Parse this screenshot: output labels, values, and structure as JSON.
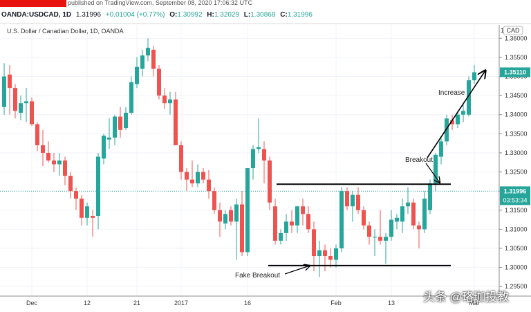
{
  "header": {
    "published": "published on TradingView.com, September 08, 2020 17:06:32 UTC",
    "symbol": "OANDA:USDCAD, 1D",
    "last": "1.31996",
    "change": "+0.01004 (+0.77%)",
    "o_label": "O:",
    "o_val": "1.30992",
    "h_label": "H:",
    "h_val": "1.32029",
    "l_label": "L:",
    "l_val": "1.30868",
    "c_label": "C:",
    "c_val": "1.31996"
  },
  "chart_title": "U.S. Dollar / Canadian Dollar, 1D, OANDA",
  "watermark": "头条 @珞珈投教",
  "colors": {
    "up": "#26a69a",
    "down": "#ef5350",
    "grid": "#f0f3fa",
    "price_tag": "#26a69a"
  },
  "chart_data": {
    "type": "candlestick",
    "ylim": [
      1.2925,
      1.3635
    ],
    "y_ticks": [
      1.295,
      1.3,
      1.305,
      1.31,
      1.315,
      1.32,
      1.325,
      1.33,
      1.335,
      1.34,
      1.345,
      1.35,
      1.355,
      1.36
    ],
    "y_tick_labels": [
      "1.29500",
      "1.30000",
      "1.30500",
      "1.31000",
      "1.31500",
      "1.32000",
      "1.32500",
      "1.33000",
      "1.33500",
      "1.34000",
      "1.34500",
      "1.35000",
      "1.35500",
      "1.36000"
    ],
    "currency_label": "CAD",
    "y_axis_top_label": "1",
    "x_labels": [
      {
        "label": "Dec",
        "index": 5
      },
      {
        "label": "12",
        "index": 15
      },
      {
        "label": "21",
        "index": 24
      },
      {
        "label": "2017",
        "index": 32
      },
      {
        "label": "16",
        "index": 44
      },
      {
        "label": "Feb",
        "index": 60
      },
      {
        "label": "13",
        "index": 70
      },
      {
        "label": "Mar",
        "index": 85
      }
    ],
    "candles": [
      {
        "o": 1.342,
        "h": 1.3535,
        "l": 1.34,
        "c": 1.35
      },
      {
        "o": 1.3505,
        "h": 1.353,
        "l": 1.34,
        "c": 1.347
      },
      {
        "o": 1.347,
        "h": 1.348,
        "l": 1.339,
        "c": 1.341
      },
      {
        "o": 1.3405,
        "h": 1.345,
        "l": 1.3385,
        "c": 1.343
      },
      {
        "o": 1.343,
        "h": 1.347,
        "l": 1.338,
        "c": 1.3435
      },
      {
        "o": 1.3435,
        "h": 1.3445,
        "l": 1.337,
        "c": 1.3375
      },
      {
        "o": 1.3375,
        "h": 1.338,
        "l": 1.3305,
        "c": 1.332
      },
      {
        "o": 1.332,
        "h": 1.336,
        "l": 1.3265,
        "c": 1.33
      },
      {
        "o": 1.33,
        "h": 1.333,
        "l": 1.3275,
        "c": 1.328
      },
      {
        "o": 1.328,
        "h": 1.33,
        "l": 1.325,
        "c": 1.327
      },
      {
        "o": 1.327,
        "h": 1.33,
        "l": 1.324,
        "c": 1.328
      },
      {
        "o": 1.328,
        "h": 1.329,
        "l": 1.3215,
        "c": 1.324
      },
      {
        "o": 1.324,
        "h": 1.325,
        "l": 1.318,
        "c": 1.32
      },
      {
        "o": 1.32,
        "h": 1.321,
        "l": 1.315,
        "c": 1.318
      },
      {
        "o": 1.318,
        "h": 1.319,
        "l": 1.311,
        "c": 1.313
      },
      {
        "o": 1.313,
        "h": 1.317,
        "l": 1.311,
        "c": 1.316
      },
      {
        "o": 1.3135,
        "h": 1.315,
        "l": 1.308,
        "c": 1.313
      },
      {
        "o": 1.3135,
        "h": 1.33,
        "l": 1.31,
        "c": 1.329
      },
      {
        "o": 1.3285,
        "h": 1.335,
        "l": 1.327,
        "c": 1.3345
      },
      {
        "o": 1.3335,
        "h": 1.339,
        "l": 1.331,
        "c": 1.334
      },
      {
        "o": 1.334,
        "h": 1.34,
        "l": 1.332,
        "c": 1.3395
      },
      {
        "o": 1.3395,
        "h": 1.342,
        "l": 1.334,
        "c": 1.336
      },
      {
        "o": 1.3365,
        "h": 1.342,
        "l": 1.336,
        "c": 1.3405
      },
      {
        "o": 1.3405,
        "h": 1.35,
        "l": 1.34,
        "c": 1.3485
      },
      {
        "o": 1.348,
        "h": 1.355,
        "l": 1.347,
        "c": 1.3525
      },
      {
        "o": 1.352,
        "h": 1.357,
        "l": 1.35,
        "c": 1.3555
      },
      {
        "o": 1.3555,
        "h": 1.36,
        "l": 1.354,
        "c": 1.3575
      },
      {
        "o": 1.357,
        "h": 1.358,
        "l": 1.35,
        "c": 1.352
      },
      {
        "o": 1.352,
        "h": 1.353,
        "l": 1.344,
        "c": 1.345
      },
      {
        "o": 1.345,
        "h": 1.347,
        "l": 1.3415,
        "c": 1.343
      },
      {
        "o": 1.343,
        "h": 1.346,
        "l": 1.34,
        "c": 1.344
      },
      {
        "o": 1.344,
        "h": 1.346,
        "l": 1.332,
        "c": 1.332
      },
      {
        "o": 1.332,
        "h": 1.333,
        "l": 1.323,
        "c": 1.325
      },
      {
        "o": 1.325,
        "h": 1.326,
        "l": 1.32,
        "c": 1.323
      },
      {
        "o": 1.323,
        "h": 1.328,
        "l": 1.321,
        "c": 1.322
      },
      {
        "o": 1.322,
        "h": 1.327,
        "l": 1.321,
        "c": 1.325
      },
      {
        "o": 1.325,
        "h": 1.326,
        "l": 1.322,
        "c": 1.323
      },
      {
        "o": 1.323,
        "h": 1.3255,
        "l": 1.318,
        "c": 1.32
      },
      {
        "o": 1.32,
        "h": 1.321,
        "l": 1.314,
        "c": 1.315
      },
      {
        "o": 1.315,
        "h": 1.317,
        "l": 1.308,
        "c": 1.312
      },
      {
        "o": 1.3115,
        "h": 1.315,
        "l": 1.31,
        "c": 1.314
      },
      {
        "o": 1.315,
        "h": 1.316,
        "l": 1.311,
        "c": 1.312
      },
      {
        "o": 1.312,
        "h": 1.318,
        "l": 1.302,
        "c": 1.3165
      },
      {
        "o": 1.3165,
        "h": 1.32,
        "l": 1.303,
        "c": 1.304
      },
      {
        "o": 1.304,
        "h": 1.326,
        "l": 1.303,
        "c": 1.326
      },
      {
        "o": 1.326,
        "h": 1.332,
        "l": 1.323,
        "c": 1.331
      },
      {
        "o": 1.331,
        "h": 1.339,
        "l": 1.33,
        "c": 1.3315
      },
      {
        "o": 1.331,
        "h": 1.333,
        "l": 1.322,
        "c": 1.328
      },
      {
        "o": 1.328,
        "h": 1.329,
        "l": 1.315,
        "c": 1.317
      },
      {
        "o": 1.316,
        "h": 1.318,
        "l": 1.306,
        "c": 1.307
      },
      {
        "o": 1.307,
        "h": 1.31,
        "l": 1.306,
        "c": 1.309
      },
      {
        "o": 1.309,
        "h": 1.314,
        "l": 1.307,
        "c": 1.312
      },
      {
        "o": 1.312,
        "h": 1.315,
        "l": 1.309,
        "c": 1.311
      },
      {
        "o": 1.311,
        "h": 1.316,
        "l": 1.309,
        "c": 1.316
      },
      {
        "o": 1.316,
        "h": 1.318,
        "l": 1.311,
        "c": 1.314
      },
      {
        "o": 1.314,
        "h": 1.316,
        "l": 1.309,
        "c": 1.31
      },
      {
        "o": 1.31,
        "h": 1.312,
        "l": 1.299,
        "c": 1.303
      },
      {
        "o": 1.303,
        "h": 1.307,
        "l": 1.2975,
        "c": 1.3045
      },
      {
        "o": 1.3045,
        "h": 1.306,
        "l": 1.299,
        "c": 1.303
      },
      {
        "o": 1.303,
        "h": 1.305,
        "l": 1.3,
        "c": 1.302
      },
      {
        "o": 1.302,
        "h": 1.306,
        "l": 1.3,
        "c": 1.305
      },
      {
        "o": 1.305,
        "h": 1.321,
        "l": 1.304,
        "c": 1.32
      },
      {
        "o": 1.32,
        "h": 1.321,
        "l": 1.315,
        "c": 1.316
      },
      {
        "o": 1.316,
        "h": 1.32,
        "l": 1.312,
        "c": 1.319
      },
      {
        "o": 1.319,
        "h": 1.321,
        "l": 1.314,
        "c": 1.315
      },
      {
        "o": 1.315,
        "h": 1.316,
        "l": 1.31,
        "c": 1.311
      },
      {
        "o": 1.311,
        "h": 1.312,
        "l": 1.306,
        "c": 1.308
      },
      {
        "o": 1.308,
        "h": 1.31,
        "l": 1.303,
        "c": 1.308
      },
      {
        "o": 1.308,
        "h": 1.315,
        "l": 1.306,
        "c": 1.307
      },
      {
        "o": 1.307,
        "h": 1.309,
        "l": 1.301,
        "c": 1.308
      },
      {
        "o": 1.308,
        "h": 1.315,
        "l": 1.307,
        "c": 1.3125
      },
      {
        "o": 1.312,
        "h": 1.314,
        "l": 1.31,
        "c": 1.313
      },
      {
        "o": 1.312,
        "h": 1.318,
        "l": 1.309,
        "c": 1.316
      },
      {
        "o": 1.316,
        "h": 1.321,
        "l": 1.314,
        "c": 1.317
      },
      {
        "o": 1.317,
        "h": 1.318,
        "l": 1.31,
        "c": 1.311
      },
      {
        "o": 1.311,
        "h": 1.312,
        "l": 1.305,
        "c": 1.31
      },
      {
        "o": 1.31,
        "h": 1.32,
        "l": 1.309,
        "c": 1.318
      },
      {
        "o": 1.315,
        "h": 1.323,
        "l": 1.314,
        "c": 1.322
      },
      {
        "o": 1.322,
        "h": 1.33,
        "l": 1.32,
        "c": 1.3295
      },
      {
        "o": 1.329,
        "h": 1.334,
        "l": 1.327,
        "c": 1.333
      },
      {
        "o": 1.333,
        "h": 1.34,
        "l": 1.332,
        "c": 1.339
      },
      {
        "o": 1.3385,
        "h": 1.34,
        "l": 1.336,
        "c": 1.3375
      },
      {
        "o": 1.3375,
        "h": 1.341,
        "l": 1.3365,
        "c": 1.34
      },
      {
        "o": 1.34,
        "h": 1.343,
        "l": 1.338,
        "c": 1.341
      },
      {
        "o": 1.34,
        "h": 1.35,
        "l": 1.3395,
        "c": 1.349
      },
      {
        "o": 1.349,
        "h": 1.353,
        "l": 1.348,
        "c": 1.3511
      }
    ],
    "current_price": 1.31996,
    "current_price_label": "1.31996",
    "last_price": 1.3511,
    "last_price_label": "1.35110",
    "countdown_label": "03:53:34",
    "annotations": {
      "breakout_level": 1.3218,
      "fake_breakout_level": 1.3005,
      "labels": {
        "breakout": "Breakout",
        "fake_breakout": "Fake Breakout",
        "increase": "Increase"
      }
    }
  }
}
